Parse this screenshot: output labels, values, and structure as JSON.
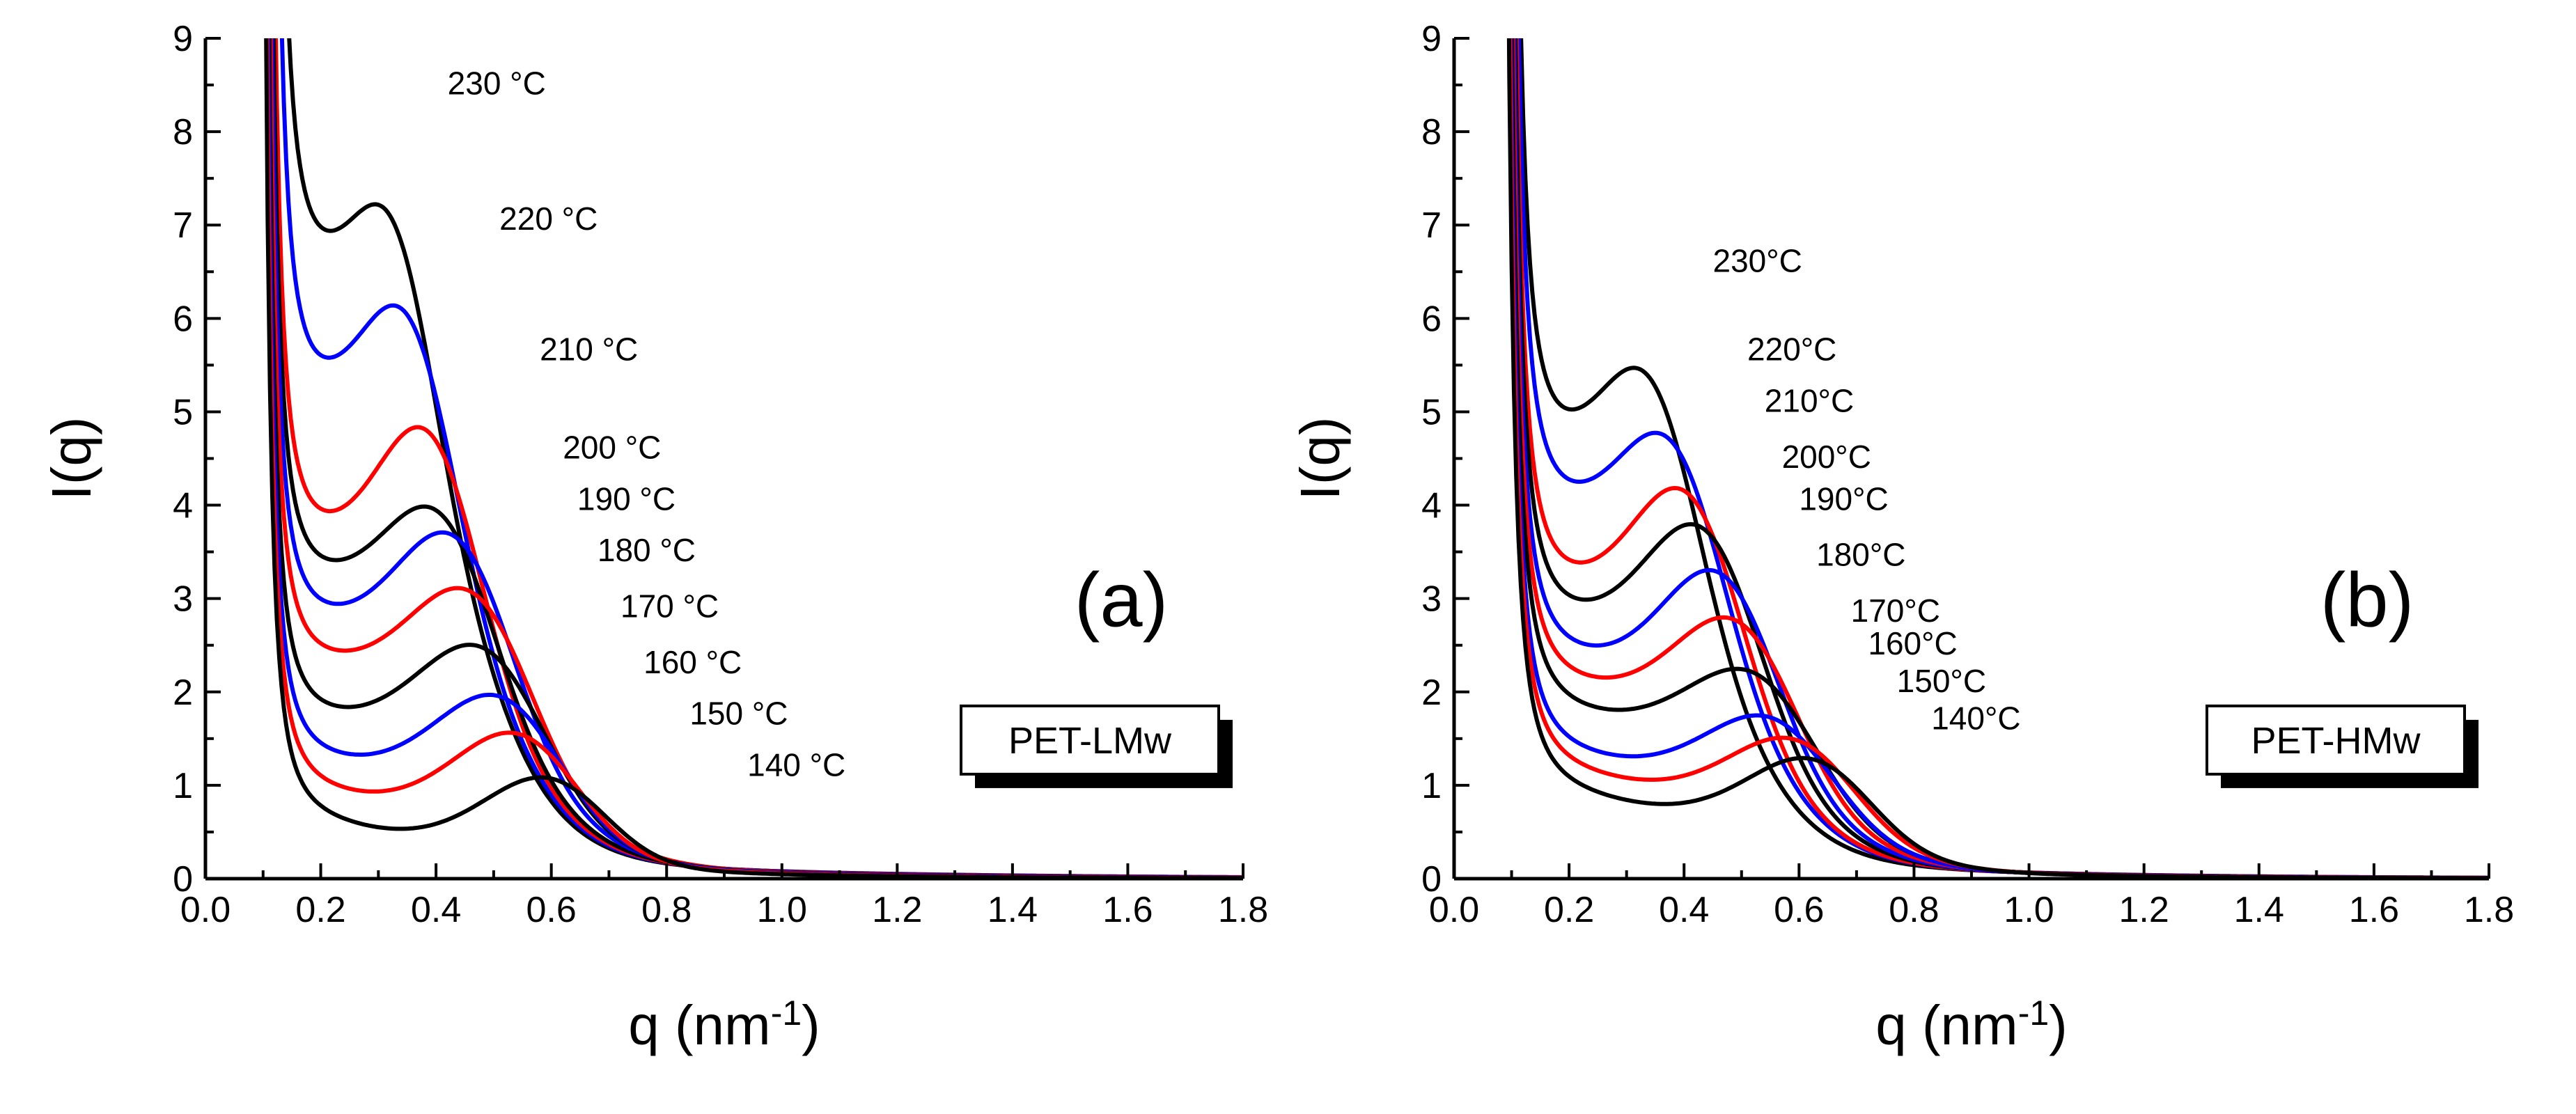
{
  "chart_data": [
    {
      "type": "line",
      "panel_label": "(a)",
      "sample_label": "PET-LMw",
      "xlabel_base": "q (nm",
      "xlabel_exp": "-1",
      "xlabel_close": ")",
      "ylabel": "I(q)",
      "xlim": [
        0.0,
        1.8
      ],
      "ylim": [
        0,
        9
      ],
      "xticks": [
        "0.0",
        "0.2",
        "0.4",
        "0.6",
        "0.8",
        "1.0",
        "1.2",
        "1.4",
        "1.6",
        "1.8"
      ],
      "yticks": [
        "0",
        "1",
        "2",
        "3",
        "4",
        "5",
        "6",
        "7",
        "8",
        "9"
      ],
      "series": [
        {
          "name": "230 °C",
          "color": "#000000",
          "label_at": [
            0.42,
            8.4
          ],
          "curve": {
            "q0": 0.095,
            "a": 0.44,
            "p": 2.5,
            "floor": 6.2,
            "amp": 2.0,
            "qp": 0.34,
            "w": 0.1,
            "tau": 0.5
          }
        },
        {
          "name": "220 °C",
          "color": "#0000ff",
          "label_at": [
            0.51,
            6.95
          ],
          "curve": {
            "q0": 0.092,
            "a": 0.4,
            "p": 2.5,
            "floor": 4.8,
            "amp": 2.15,
            "qp": 0.37,
            "w": 0.115,
            "tau": 0.49
          }
        },
        {
          "name": "210 °C",
          "color": "#ff0000",
          "label_at": [
            0.58,
            5.55
          ],
          "curve": {
            "q0": 0.088,
            "a": 0.36,
            "p": 2.5,
            "floor": 3.2,
            "amp": 2.25,
            "qp": 0.41,
            "w": 0.13,
            "tau": 0.47
          }
        },
        {
          "name": "200 °C",
          "color": "#000000",
          "label_at": [
            0.62,
            4.5
          ],
          "curve": {
            "q0": 0.086,
            "a": 0.34,
            "p": 2.5,
            "floor": 2.75,
            "amp": 1.65,
            "qp": 0.43,
            "w": 0.14,
            "tau": 0.45
          }
        },
        {
          "name": "190 °C",
          "color": "#0000ff",
          "label_at": [
            0.645,
            3.95
          ],
          "curve": {
            "q0": 0.085,
            "a": 0.32,
            "p": 2.5,
            "floor": 2.3,
            "amp": 1.8,
            "qp": 0.46,
            "w": 0.15,
            "tau": 0.43
          }
        },
        {
          "name": "180 °C",
          "color": "#ff0000",
          "label_at": [
            0.68,
            3.4
          ],
          "curve": {
            "q0": 0.084,
            "a": 0.3,
            "p": 2.5,
            "floor": 1.85,
            "amp": 1.55,
            "qp": 0.49,
            "w": 0.16,
            "tau": 0.41
          }
        },
        {
          "name": "170 °C",
          "color": "#000000",
          "label_at": [
            0.72,
            2.8
          ],
          "curve": {
            "q0": 0.083,
            "a": 0.29,
            "p": 2.5,
            "floor": 1.25,
            "amp": 1.45,
            "qp": 0.51,
            "w": 0.17,
            "tau": 0.39
          }
        },
        {
          "name": "160 °C",
          "color": "#0000ff",
          "label_at": [
            0.76,
            2.2
          ],
          "curve": {
            "q0": 0.082,
            "a": 0.28,
            "p": 2.5,
            "floor": 0.8,
            "amp": 1.3,
            "qp": 0.54,
            "w": 0.17,
            "tau": 0.37
          }
        },
        {
          "name": "150 °C",
          "color": "#ff0000",
          "label_at": [
            0.84,
            1.65
          ],
          "curve": {
            "q0": 0.081,
            "a": 0.27,
            "p": 2.5,
            "floor": 0.45,
            "amp": 1.2,
            "qp": 0.57,
            "w": 0.17,
            "tau": 0.35
          }
        },
        {
          "name": "140 °C",
          "color": "#000000",
          "label_at": [
            0.94,
            1.1
          ],
          "curve": {
            "q0": 0.08,
            "a": 0.26,
            "p": 2.5,
            "floor": 0.12,
            "amp": 1.0,
            "qp": 0.62,
            "w": 0.17,
            "tau": 0.33
          }
        }
      ]
    },
    {
      "type": "line",
      "panel_label": "(b)",
      "sample_label": "PET-HMw",
      "xlabel_base": "q (nm",
      "xlabel_exp": "-1",
      "xlabel_close": ")",
      "ylabel": "I(q)",
      "xlim": [
        0.0,
        1.8
      ],
      "ylim": [
        0,
        9
      ],
      "xticks": [
        "0.0",
        "0.2",
        "0.4",
        "0.6",
        "0.8",
        "1.0",
        "1.2",
        "1.4",
        "1.6",
        "1.8"
      ],
      "yticks": [
        "0",
        "1",
        "2",
        "3",
        "4",
        "5",
        "6",
        "7",
        "8",
        "9"
      ],
      "series": [
        {
          "name": "230°C",
          "color": "#000000",
          "label_at": [
            0.45,
            6.5
          ],
          "curve": {
            "q0": 0.075,
            "a": 0.48,
            "p": 2.5,
            "floor": 4.15,
            "amp": 1.95,
            "qp": 0.36,
            "w": 0.12,
            "tau": 0.42
          }
        },
        {
          "name": "220°C",
          "color": "#0000ff",
          "label_at": [
            0.51,
            5.55
          ],
          "curve": {
            "q0": 0.074,
            "a": 0.46,
            "p": 2.5,
            "floor": 3.5,
            "amp": 1.8,
            "qp": 0.4,
            "w": 0.13,
            "tau": 0.41
          }
        },
        {
          "name": "210°C",
          "color": "#ff0000",
          "label_at": [
            0.54,
            5.0
          ],
          "curve": {
            "q0": 0.073,
            "a": 0.44,
            "p": 2.5,
            "floor": 2.65,
            "amp": 2.0,
            "qp": 0.43,
            "w": 0.14,
            "tau": 0.4
          }
        },
        {
          "name": "200°C",
          "color": "#000000",
          "label_at": [
            0.57,
            4.4
          ],
          "curve": {
            "q0": 0.072,
            "a": 0.43,
            "p": 2.5,
            "floor": 2.3,
            "amp": 1.9,
            "qp": 0.46,
            "w": 0.15,
            "tau": 0.39
          }
        },
        {
          "name": "190°C",
          "color": "#0000ff",
          "label_at": [
            0.6,
            3.95
          ],
          "curve": {
            "q0": 0.071,
            "a": 0.42,
            "p": 2.5,
            "floor": 1.9,
            "amp": 1.75,
            "qp": 0.49,
            "w": 0.15,
            "tau": 0.38
          }
        },
        {
          "name": "180°C",
          "color": "#ff0000",
          "label_at": [
            0.63,
            3.35
          ],
          "curve": {
            "q0": 0.07,
            "a": 0.41,
            "p": 2.5,
            "floor": 1.6,
            "amp": 1.45,
            "qp": 0.52,
            "w": 0.16,
            "tau": 0.37
          }
        },
        {
          "name": "170°C",
          "color": "#000000",
          "label_at": [
            0.69,
            2.75
          ],
          "curve": {
            "q0": 0.069,
            "a": 0.4,
            "p": 2.5,
            "floor": 1.3,
            "amp": 1.1,
            "qp": 0.55,
            "w": 0.17,
            "tau": 0.36
          }
        },
        {
          "name": "160°C",
          "color": "#0000ff",
          "label_at": [
            0.72,
            2.4
          ],
          "curve": {
            "q0": 0.068,
            "a": 0.39,
            "p": 2.5,
            "floor": 0.85,
            "amp": 1.0,
            "qp": 0.58,
            "w": 0.17,
            "tau": 0.35
          }
        },
        {
          "name": "150°C",
          "color": "#ff0000",
          "label_at": [
            0.77,
            2.0
          ],
          "curve": {
            "q0": 0.067,
            "a": 0.38,
            "p": 2.5,
            "floor": 0.65,
            "amp": 0.95,
            "qp": 0.62,
            "w": 0.17,
            "tau": 0.34
          }
        },
        {
          "name": "140°C",
          "color": "#000000",
          "label_at": [
            0.83,
            1.6
          ],
          "curve": {
            "q0": 0.066,
            "a": 0.37,
            "p": 2.5,
            "floor": 0.42,
            "amp": 0.95,
            "qp": 0.65,
            "w": 0.17,
            "tau": 0.33
          }
        }
      ]
    }
  ]
}
